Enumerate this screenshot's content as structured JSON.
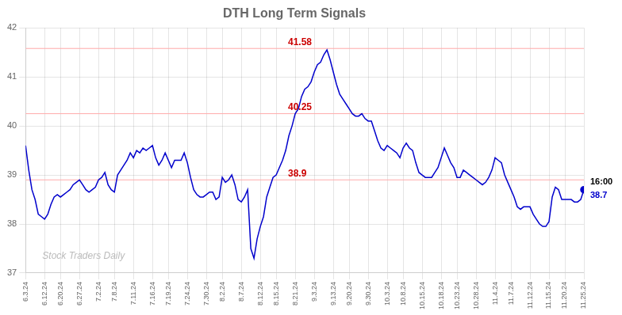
{
  "chart_data": {
    "type": "line",
    "title": "DTH Long Term Signals",
    "categories": [
      "6.3.24",
      null,
      null,
      null,
      null,
      null,
      "6.12.24",
      null,
      null,
      null,
      null,
      "6.20.24",
      null,
      null,
      null,
      null,
      null,
      "6.27.24",
      null,
      null,
      null,
      null,
      null,
      "7.2.24",
      null,
      null,
      null,
      null,
      "7.8.24",
      null,
      null,
      null,
      null,
      null,
      "7.11.24",
      null,
      null,
      null,
      null,
      null,
      "7.16.24",
      null,
      null,
      null,
      null,
      "7.19.24",
      null,
      null,
      null,
      null,
      null,
      "7.24.24",
      null,
      null,
      null,
      null,
      null,
      "7.30.24",
      null,
      null,
      null,
      null,
      "8.2.24",
      null,
      null,
      null,
      null,
      null,
      "8.7.24",
      null,
      null,
      null,
      null,
      null,
      "8.12.24",
      null,
      null,
      null,
      null,
      "8.15.24",
      null,
      null,
      null,
      null,
      null,
      "8.21.24",
      null,
      null,
      null,
      null,
      null,
      "9.3.24",
      null,
      null,
      null,
      null,
      null,
      "9.13.24",
      null,
      null,
      null,
      null,
      "9.20.24",
      null,
      null,
      null,
      null,
      null,
      "9.30.24",
      null,
      null,
      null,
      null,
      null,
      "10.3.24",
      null,
      null,
      null,
      null,
      "10.8.24",
      null,
      null,
      null,
      null,
      null,
      "10.15.24",
      null,
      null,
      null,
      null,
      null,
      "10.18.24",
      null,
      null,
      null,
      null,
      "10.23.24",
      null,
      null,
      null,
      null,
      null,
      "10.28.24",
      null,
      null,
      null,
      null,
      null,
      "11.4.24",
      null,
      null,
      null,
      null,
      "11.7.24",
      null,
      null,
      null,
      null,
      null,
      "11.12.24",
      null,
      null,
      null,
      null,
      null,
      "11.15.24",
      null,
      null,
      null,
      null,
      "11.20.24",
      null,
      null,
      null,
      null,
      null,
      "11.25.24"
    ],
    "series": [
      {
        "color": "#0000cc",
        "values": [
          39.6,
          39.1,
          38.7,
          38.5,
          38.2,
          38.15,
          38.1,
          38.2,
          38.4,
          38.55,
          38.6,
          38.55,
          38.6,
          38.65,
          38.7,
          38.8,
          38.85,
          38.9,
          38.8,
          38.7,
          38.65,
          38.7,
          38.75,
          38.9,
          38.95,
          39.05,
          38.8,
          38.7,
          38.65,
          39.0,
          39.1,
          39.2,
          39.3,
          39.45,
          39.35,
          39.5,
          39.45,
          39.55,
          39.5,
          39.55,
          39.6,
          39.35,
          39.2,
          39.3,
          39.45,
          39.3,
          39.15,
          39.3,
          39.3,
          39.3,
          39.45,
          39.25,
          38.95,
          38.7,
          38.6,
          38.55,
          38.55,
          38.6,
          38.65,
          38.65,
          38.5,
          38.55,
          38.95,
          38.85,
          38.9,
          39.0,
          38.8,
          38.5,
          38.45,
          38.55,
          38.7,
          37.5,
          37.3,
          37.7,
          37.95,
          38.15,
          38.55,
          38.75,
          38.95,
          39.0,
          39.15,
          39.3,
          39.5,
          39.8,
          40.0,
          40.25,
          40.35,
          40.6,
          40.75,
          40.8,
          40.9,
          41.1,
          41.25,
          41.3,
          41.45,
          41.55,
          41.35,
          41.1,
          40.85,
          40.65,
          40.55,
          40.45,
          40.35,
          40.25,
          40.2,
          40.2,
          40.25,
          40.15,
          40.1,
          40.1,
          39.9,
          39.7,
          39.55,
          39.5,
          39.6,
          39.55,
          39.5,
          39.45,
          39.35,
          39.55,
          39.65,
          39.55,
          39.5,
          39.25,
          39.05,
          39.0,
          38.95,
          38.95,
          38.95,
          39.05,
          39.15,
          39.35,
          39.55,
          39.4,
          39.25,
          39.15,
          38.95,
          38.95,
          39.1,
          39.05,
          39.0,
          38.95,
          38.9,
          38.85,
          38.8,
          38.85,
          38.95,
          39.1,
          39.35,
          39.3,
          39.25,
          39.0,
          38.85,
          38.7,
          38.55,
          38.35,
          38.3,
          38.35,
          38.35,
          38.35,
          38.2,
          38.1,
          38.0,
          37.95,
          37.95,
          38.05,
          38.55,
          38.75,
          38.7,
          38.5,
          38.5,
          38.5,
          38.5,
          38.45,
          38.45,
          38.5,
          38.7
        ]
      }
    ],
    "hlines": {
      "values": [
        41.58,
        40.25,
        38.9
      ],
      "color": "#ffaaaa"
    },
    "annotations": [
      {
        "text": "41.58",
        "y": 41.58,
        "color": "#cc0000"
      },
      {
        "text": "40.25",
        "y": 40.25,
        "color": "#cc0000"
      },
      {
        "text": "38.9",
        "y": 38.9,
        "color": "#cc0000"
      }
    ],
    "end_labels": [
      {
        "text": "16:00",
        "color": "#000000"
      },
      {
        "text": "38.7",
        "color": "#0000cc"
      }
    ],
    "watermark": {
      "text": "Stock Traders Daily",
      "color": "#aaaaaa"
    },
    "ylim": [
      37.0,
      42.0
    ],
    "yticks": [
      37,
      38,
      39,
      40,
      41,
      42
    ],
    "grid": true
  }
}
